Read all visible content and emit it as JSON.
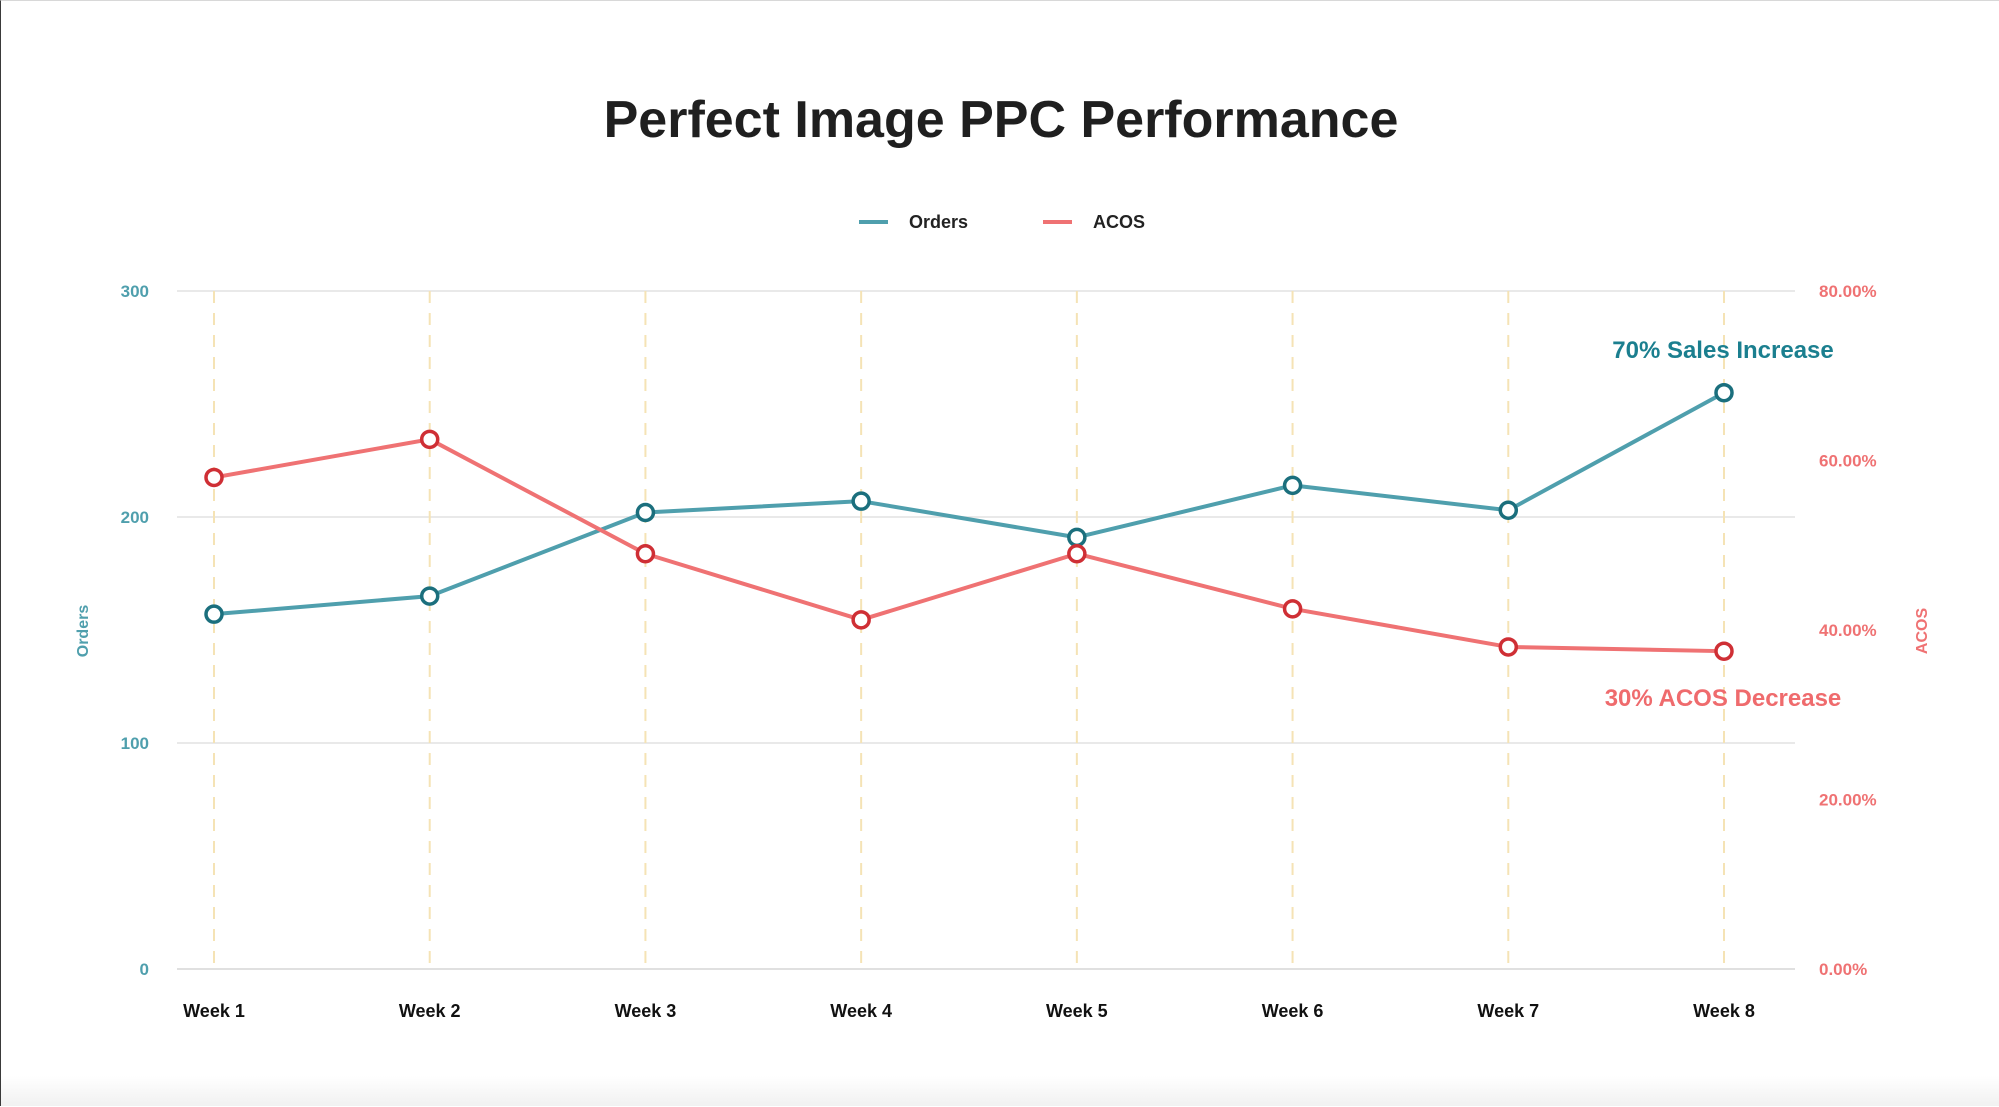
{
  "colors": {
    "orders_line": "#4f9fad",
    "orders_marker": "#1b6f7d",
    "acos_line": "#ef7273",
    "acos_marker": "#cf2f35",
    "annotation_orders": "#1b7f8f",
    "annotation_acos": "#ef6b6d",
    "gridline": "#e2e2e2",
    "week_guide": "#f5e3b5",
    "title": "#1f1f1f"
  },
  "chart_data": {
    "type": "line",
    "title": "Perfect Image PPC Performance",
    "categories": [
      "Week 1",
      "Week 2",
      "Week 3",
      "Week 4",
      "Week 5",
      "Week 6",
      "Week 7",
      "Week 8"
    ],
    "series": [
      {
        "name": "Orders",
        "axis": "left",
        "values": [
          157,
          165,
          202,
          207,
          191,
          214,
          203,
          255
        ]
      },
      {
        "name": "ACOS",
        "axis": "right",
        "values": [
          0.58,
          0.625,
          0.49,
          0.412,
          0.49,
          0.425,
          0.38,
          0.375
        ]
      }
    ],
    "ylabel": "Orders",
    "ylabel_right": "ACOS",
    "ylim": [
      0,
      300
    ],
    "ylim_right": [
      0,
      0.8
    ],
    "yticks": [
      "0",
      "100",
      "200",
      "300"
    ],
    "yticks_right": [
      "0.00%",
      "20.00%",
      "40.00%",
      "60.00%",
      "80.00%"
    ],
    "legend": {
      "placement": "top-center",
      "entries": [
        "Orders",
        "ACOS"
      ]
    },
    "grid": true,
    "annotations": [
      {
        "text": "70% Sales Increase",
        "series": "Orders",
        "category": "Week 8"
      },
      {
        "text": "30% ACOS Decrease",
        "series": "ACOS",
        "category": "Week 8"
      }
    ]
  }
}
